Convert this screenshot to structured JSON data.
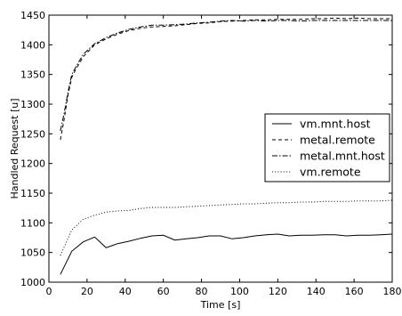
{
  "chart_data": {
    "type": "line",
    "title": "",
    "xlabel": "Time [s]",
    "ylabel": "Handled Request [u]",
    "xlim": [
      0,
      180
    ],
    "ylim": [
      1000,
      1450
    ],
    "xticks": [
      0,
      20,
      40,
      60,
      80,
      100,
      120,
      140,
      160,
      180
    ],
    "yticks": [
      1000,
      1050,
      1100,
      1150,
      1200,
      1250,
      1300,
      1350,
      1400,
      1450
    ],
    "grid": false,
    "legend_position": "right",
    "series": [
      {
        "name": "vm.mnt.host",
        "linestyle": "solid",
        "color": "#000000",
        "x": [
          6,
          12,
          18,
          24,
          30,
          36,
          42,
          48,
          54,
          60,
          66,
          72,
          78,
          84,
          90,
          96,
          102,
          108,
          114,
          120,
          126,
          132,
          138,
          144,
          150,
          156,
          162,
          168,
          174,
          180
        ],
        "y": [
          1013,
          1052,
          1068,
          1076,
          1058,
          1065,
          1069,
          1074,
          1078,
          1079,
          1071,
          1073,
          1075,
          1078,
          1078,
          1073,
          1075,
          1078,
          1080,
          1081,
          1078,
          1079,
          1079,
          1080,
          1080,
          1078,
          1079,
          1079,
          1080,
          1081
        ]
      },
      {
        "name": "metal.remote",
        "linestyle": "dashed",
        "color": "#000000",
        "x": [
          6,
          8,
          10,
          12,
          14,
          18,
          24,
          30,
          36,
          42,
          48,
          54,
          60,
          66,
          72,
          78,
          84,
          90,
          96,
          102,
          108,
          114,
          120,
          126,
          132,
          138,
          144,
          150,
          156,
          162,
          168,
          174,
          180
        ],
        "y": [
          1240,
          1275,
          1315,
          1345,
          1358,
          1380,
          1400,
          1410,
          1418,
          1424,
          1428,
          1430,
          1431,
          1432,
          1434,
          1436,
          1437,
          1439,
          1440,
          1441,
          1442,
          1442,
          1443,
          1443,
          1443,
          1444,
          1444,
          1445,
          1444,
          1445,
          1444,
          1444,
          1444
        ]
      },
      {
        "name": "metal.mnt.host",
        "linestyle": "dashdot",
        "color": "#000000",
        "x": [
          6,
          8,
          10,
          12,
          14,
          18,
          24,
          30,
          36,
          42,
          48,
          54,
          60,
          66,
          72,
          78,
          84,
          90,
          96,
          102,
          108,
          114,
          120,
          126,
          132,
          138,
          144,
          150,
          156,
          162,
          168,
          174,
          180
        ],
        "y": [
          1255,
          1285,
          1320,
          1350,
          1362,
          1384,
          1402,
          1412,
          1420,
          1426,
          1430,
          1433,
          1433,
          1434,
          1435,
          1437,
          1438,
          1440,
          1441,
          1440,
          1441,
          1440,
          1441,
          1441,
          1440,
          1441,
          1441,
          1441,
          1441,
          1441,
          1441,
          1441,
          1441
        ]
      },
      {
        "name": "vm.remote",
        "linestyle": "dotted",
        "color": "#000000",
        "x": [
          6,
          12,
          18,
          24,
          30,
          36,
          42,
          48,
          54,
          60,
          66,
          72,
          78,
          84,
          90,
          96,
          102,
          108,
          114,
          120,
          126,
          132,
          138,
          144,
          150,
          156,
          162,
          168,
          174,
          180
        ],
        "y": [
          1045,
          1088,
          1106,
          1113,
          1118,
          1120,
          1121,
          1124,
          1126,
          1126,
          1126,
          1127,
          1128,
          1129,
          1130,
          1131,
          1132,
          1132,
          1133,
          1134,
          1134,
          1135,
          1135,
          1136,
          1136,
          1136,
          1137,
          1137,
          1137,
          1138
        ]
      }
    ]
  }
}
